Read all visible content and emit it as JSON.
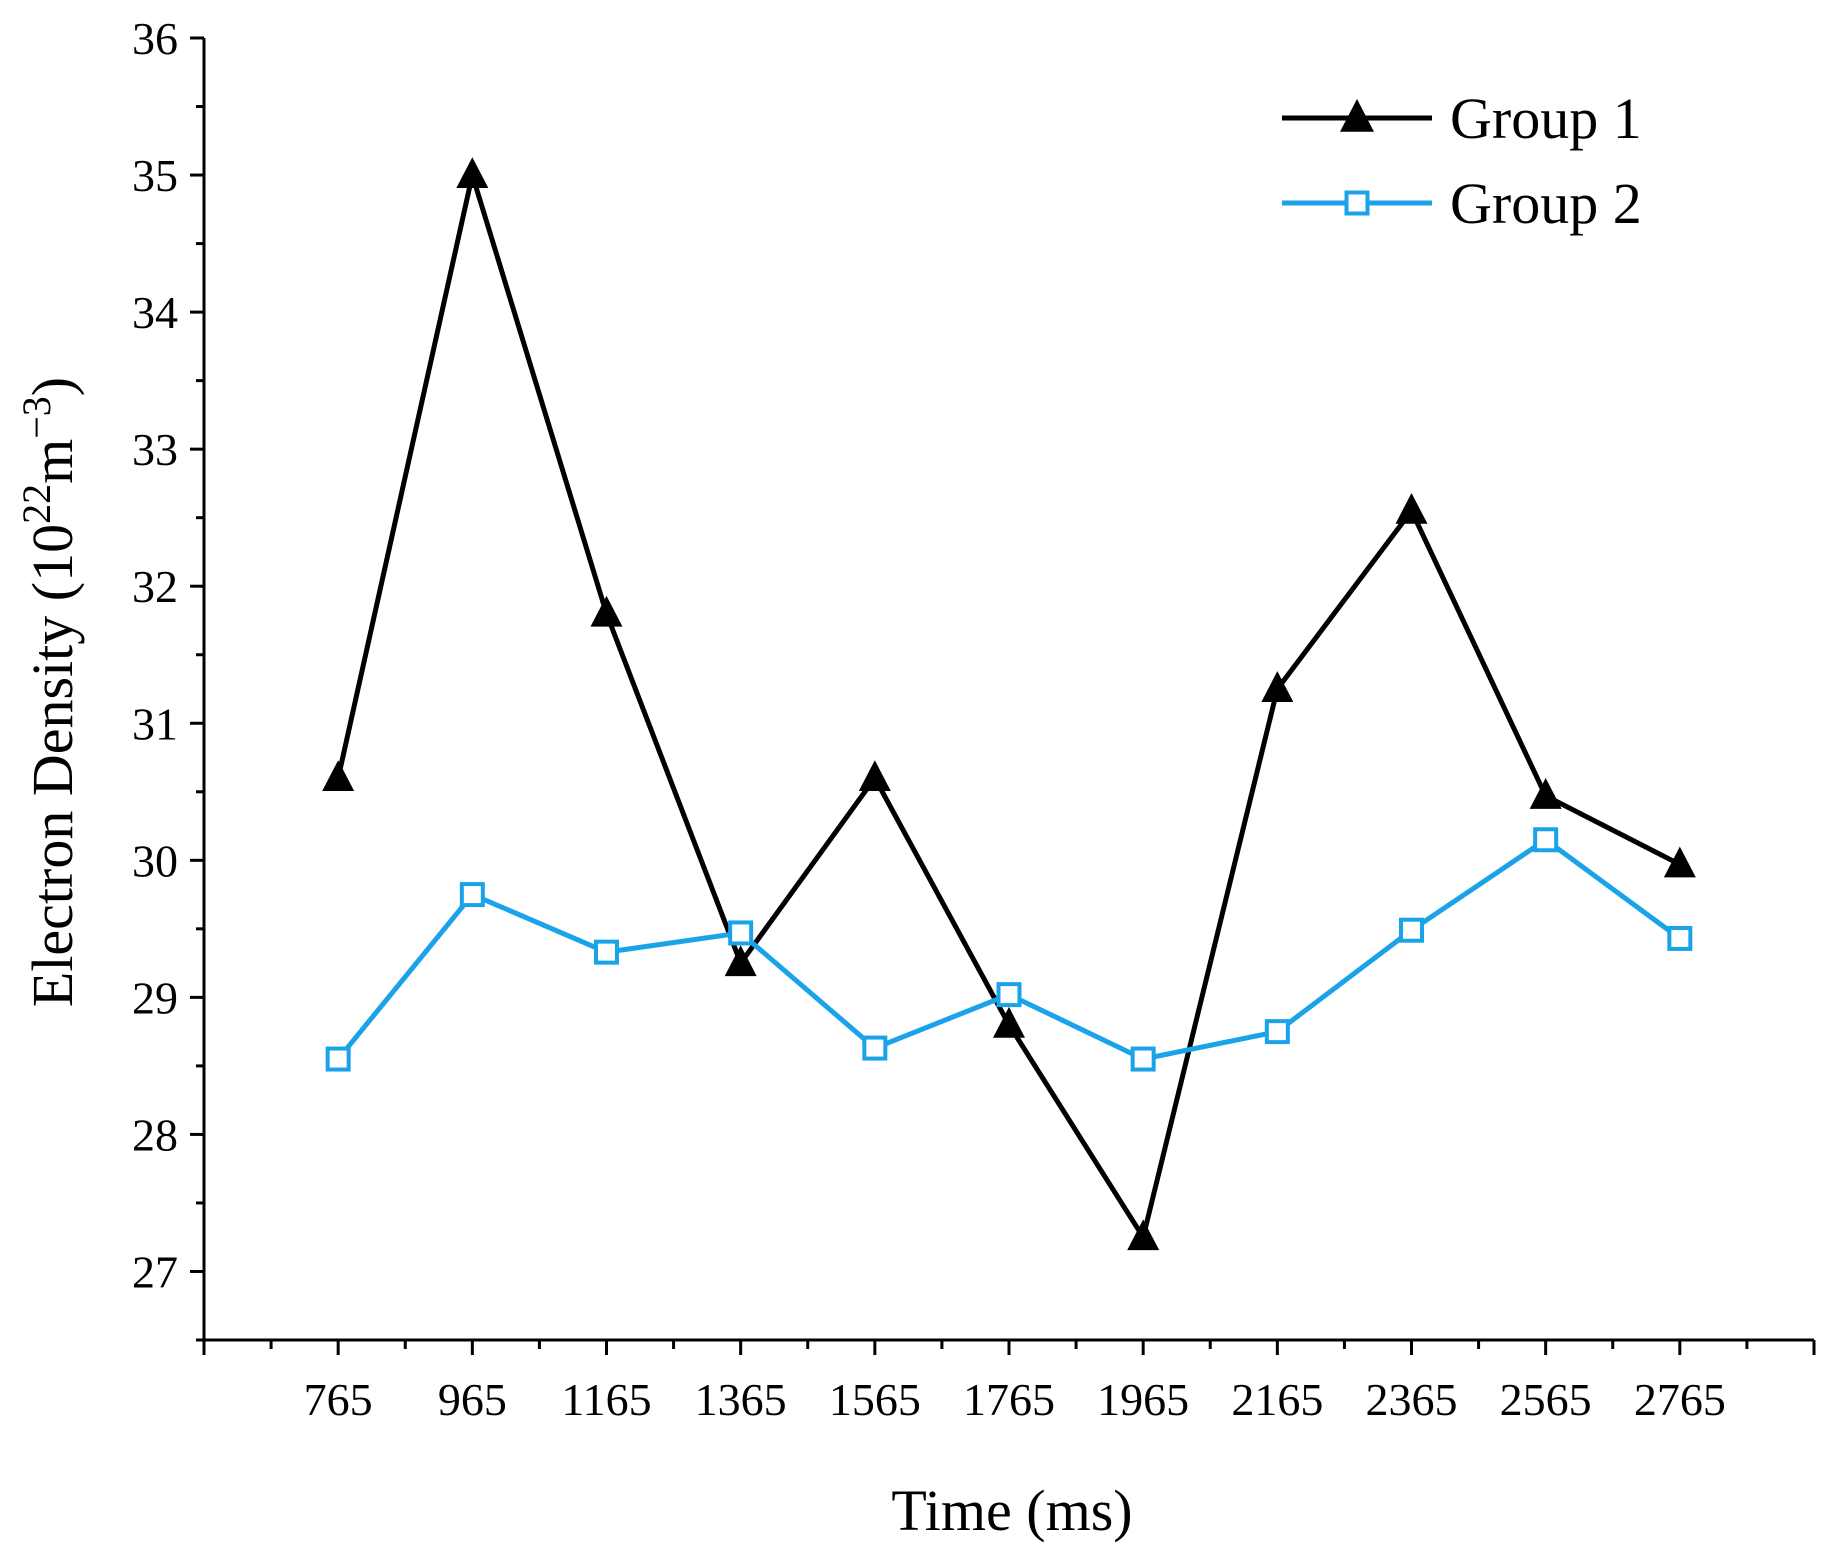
{
  "chart_data": {
    "type": "line",
    "xlabel": "Time (ms)",
    "ylabel": {
      "prefix": "Electron Density (10",
      "exp1": "22",
      "mid": "m",
      "exp2": "−3",
      "suffix": ")"
    },
    "x": [
      765,
      965,
      1165,
      1365,
      1565,
      1765,
      1965,
      2165,
      2365,
      2565,
      2765
    ],
    "x_tick_labels": [
      "765",
      "965",
      "1165",
      "1365",
      "1565",
      "1765",
      "1965",
      "2165",
      "2365",
      "2565",
      "2765"
    ],
    "xlim": [
      565,
      2965
    ],
    "ylim": [
      26.5,
      36
    ],
    "y_ticks": [
      27,
      28,
      29,
      30,
      31,
      32,
      33,
      34,
      35,
      36
    ],
    "legend_position": "top-right",
    "series": [
      {
        "name": "Group 1",
        "marker": "filled-triangle",
        "color": "#000000",
        "values": [
          30.6,
          35.0,
          31.8,
          29.25,
          30.6,
          28.8,
          27.25,
          31.25,
          32.55,
          30.47,
          29.97
        ]
      },
      {
        "name": "Group 2",
        "marker": "open-square",
        "color": "#1aa3e8",
        "values": [
          28.55,
          29.75,
          29.33,
          29.47,
          28.63,
          29.02,
          28.55,
          28.75,
          29.49,
          30.15,
          29.43
        ]
      }
    ]
  }
}
